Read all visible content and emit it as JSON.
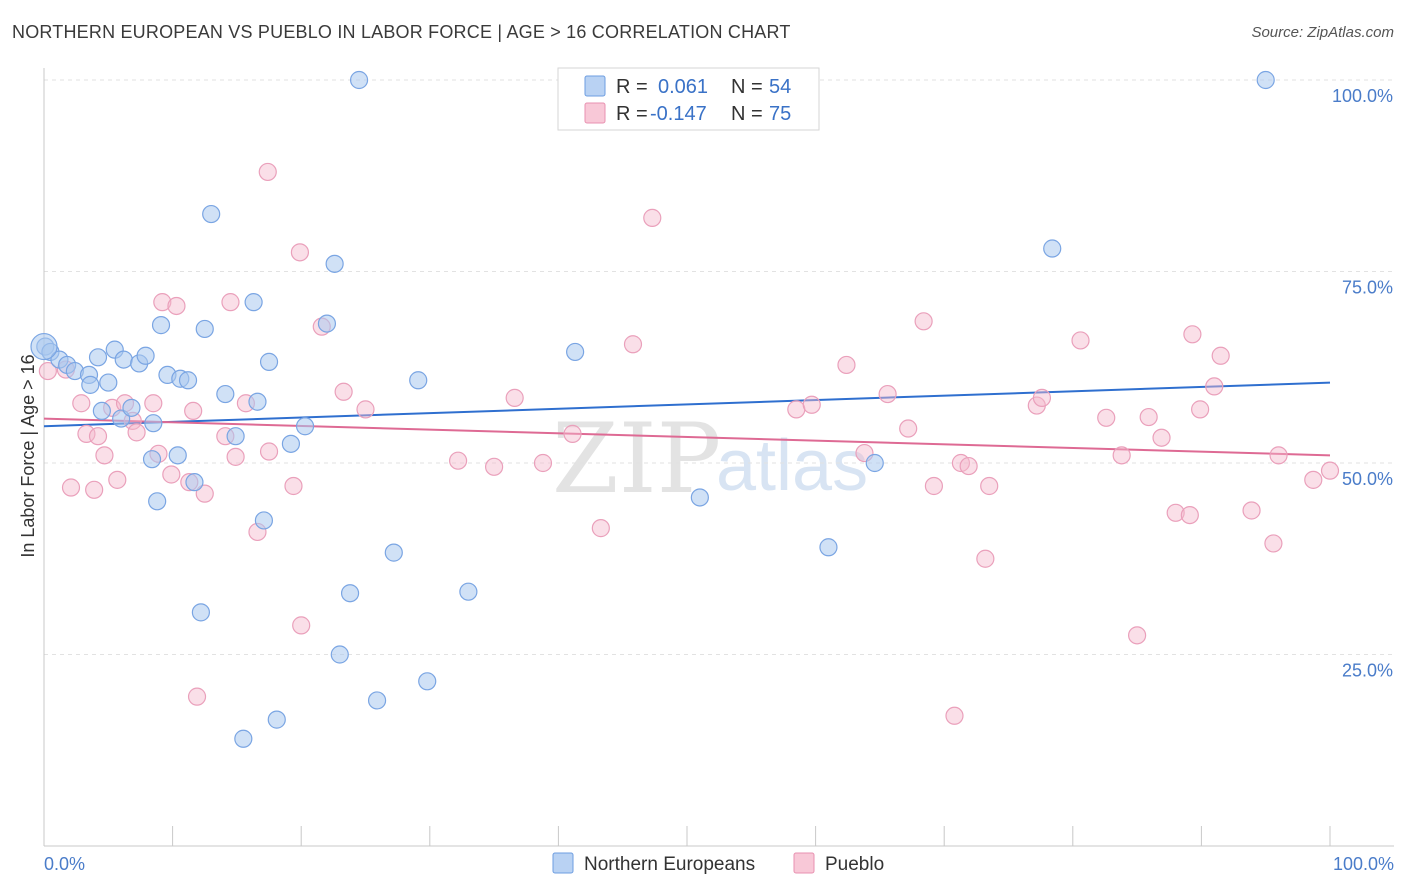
{
  "header": {
    "title": "NORTHERN EUROPEAN VS PUEBLO IN LABOR FORCE | AGE > 16 CORRELATION CHART",
    "source": "Source: ZipAtlas.com"
  },
  "colors": {
    "blue": "#4a7fd4",
    "blue_fill": "#aac8ef",
    "pink": "#e06d98",
    "pink_fill": "#f5b9cd",
    "tick_text": "#4a7cc9"
  },
  "legend": {
    "series": [
      {
        "r_label": "R =",
        "r_value": "0.061",
        "n_label": "N =",
        "n_value": "54"
      },
      {
        "r_label": "R =",
        "r_value": "-0.147",
        "n_label": "N =",
        "n_value": "75"
      }
    ]
  },
  "watermark": {
    "zip": "ZIP",
    "atlas": "atlas"
  },
  "chart_data": {
    "type": "scatter",
    "ylabel": "In Labor Force | Age > 16",
    "xlabel": "",
    "xlim": [
      0,
      100
    ],
    "ylim": [
      0,
      100
    ],
    "x_tick_labels": [
      "0.0%",
      "100.0%"
    ],
    "y_ticks": [
      {
        "value": 25,
        "label": "25.0%"
      },
      {
        "value": 50,
        "label": "50.0%"
      },
      {
        "value": 75,
        "label": "75.0%"
      },
      {
        "value": 100,
        "label": "100.0%"
      }
    ],
    "series": [
      {
        "name": "Northern Europeans",
        "color": "#4a7fd4",
        "trend": {
          "x": [
            0,
            100
          ],
          "y": [
            54.8,
            60.5
          ]
        },
        "points": [
          [
            0.1,
            65.2
          ],
          [
            0.5,
            64.5
          ],
          [
            1.2,
            63.5
          ],
          [
            1.8,
            62.8
          ],
          [
            2.4,
            62.0
          ],
          [
            3.5,
            61.5
          ],
          [
            3.6,
            60.2
          ],
          [
            4.2,
            63.8
          ],
          [
            4.5,
            56.8
          ],
          [
            5.0,
            60.5
          ],
          [
            5.5,
            64.8
          ],
          [
            6.0,
            55.8
          ],
          [
            6.2,
            63.5
          ],
          [
            6.8,
            57.2
          ],
          [
            7.4,
            63.0
          ],
          [
            7.9,
            64.0
          ],
          [
            8.5,
            55.2
          ],
          [
            8.8,
            45.0
          ],
          [
            9.1,
            68.0
          ],
          [
            9.6,
            61.5
          ],
          [
            10.6,
            61.0
          ],
          [
            10.4,
            51.0
          ],
          [
            11.2,
            60.8
          ],
          [
            11.7,
            47.5
          ],
          [
            12.5,
            67.5
          ],
          [
            12.2,
            30.5
          ],
          [
            13.0,
            82.5
          ],
          [
            14.1,
            59.0
          ],
          [
            14.9,
            53.5
          ],
          [
            15.5,
            14.0
          ],
          [
            16.3,
            71.0
          ],
          [
            16.6,
            58.0
          ],
          [
            17.1,
            42.5
          ],
          [
            17.5,
            63.2
          ],
          [
            18.1,
            16.5
          ],
          [
            19.2,
            52.5
          ],
          [
            20.3,
            54.8
          ],
          [
            22.0,
            68.2
          ],
          [
            22.6,
            76.0
          ],
          [
            23.0,
            25.0
          ],
          [
            23.8,
            33.0
          ],
          [
            24.5,
            100.0
          ],
          [
            25.9,
            19.0
          ],
          [
            27.2,
            38.3
          ],
          [
            29.1,
            60.8
          ],
          [
            29.8,
            21.5
          ],
          [
            33.0,
            33.2
          ],
          [
            41.3,
            64.5
          ],
          [
            51.0,
            45.5
          ],
          [
            61.0,
            39.0
          ],
          [
            64.6,
            50.0
          ],
          [
            78.4,
            78.0
          ],
          [
            95.0,
            100.0
          ],
          [
            8.4,
            50.5
          ]
        ]
      },
      {
        "name": "Pueblo",
        "color": "#e06d98",
        "trend": {
          "x": [
            0,
            100
          ],
          "y": [
            55.8,
            51.0
          ]
        },
        "points": [
          [
            0.3,
            62.0
          ],
          [
            1.7,
            62.2
          ],
          [
            2.1,
            46.8
          ],
          [
            2.9,
            57.8
          ],
          [
            3.3,
            53.8
          ],
          [
            3.9,
            46.5
          ],
          [
            4.2,
            53.5
          ],
          [
            4.7,
            51.0
          ],
          [
            5.3,
            57.2
          ],
          [
            5.7,
            47.8
          ],
          [
            6.3,
            57.8
          ],
          [
            6.9,
            55.5
          ],
          [
            7.2,
            54.0
          ],
          [
            8.5,
            57.8
          ],
          [
            8.9,
            51.2
          ],
          [
            9.2,
            71.0
          ],
          [
            9.9,
            48.5
          ],
          [
            10.3,
            70.5
          ],
          [
            11.3,
            47.5
          ],
          [
            11.6,
            56.8
          ],
          [
            11.9,
            19.5
          ],
          [
            12.5,
            46.0
          ],
          [
            14.1,
            53.5
          ],
          [
            14.5,
            71.0
          ],
          [
            14.9,
            50.8
          ],
          [
            15.7,
            57.8
          ],
          [
            16.6,
            41.0
          ],
          [
            17.5,
            51.5
          ],
          [
            17.4,
            88.0
          ],
          [
            19.4,
            47.0
          ],
          [
            20.0,
            28.8
          ],
          [
            21.6,
            67.8
          ],
          [
            23.3,
            59.3
          ],
          [
            25.0,
            57.0
          ],
          [
            19.9,
            77.5
          ],
          [
            32.2,
            50.3
          ],
          [
            35.0,
            49.5
          ],
          [
            36.6,
            58.5
          ],
          [
            38.8,
            50.0
          ],
          [
            41.1,
            53.8
          ],
          [
            43.3,
            41.5
          ],
          [
            45.8,
            65.5
          ],
          [
            47.3,
            82.0
          ],
          [
            58.5,
            57.0
          ],
          [
            59.7,
            57.6
          ],
          [
            62.4,
            62.8
          ],
          [
            63.8,
            51.3
          ],
          [
            65.6,
            59.0
          ],
          [
            67.2,
            54.5
          ],
          [
            68.4,
            68.5
          ],
          [
            69.2,
            47.0
          ],
          [
            71.3,
            50.0
          ],
          [
            71.9,
            49.6
          ],
          [
            73.2,
            37.5
          ],
          [
            70.8,
            17.0
          ],
          [
            77.2,
            57.5
          ],
          [
            77.6,
            58.5
          ],
          [
            80.6,
            66.0
          ],
          [
            82.6,
            55.9
          ],
          [
            83.8,
            51.0
          ],
          [
            85.9,
            56.0
          ],
          [
            86.9,
            53.3
          ],
          [
            85.0,
            27.5
          ],
          [
            88.0,
            43.5
          ],
          [
            89.1,
            43.2
          ],
          [
            89.3,
            66.8
          ],
          [
            89.9,
            57.0
          ],
          [
            91.0,
            60.0
          ],
          [
            91.5,
            64.0
          ],
          [
            93.9,
            43.8
          ],
          [
            95.6,
            39.5
          ],
          [
            96.0,
            51.0
          ],
          [
            98.7,
            47.8
          ],
          [
            100.0,
            49.0
          ],
          [
            73.5,
            47.0
          ]
        ]
      }
    ]
  }
}
